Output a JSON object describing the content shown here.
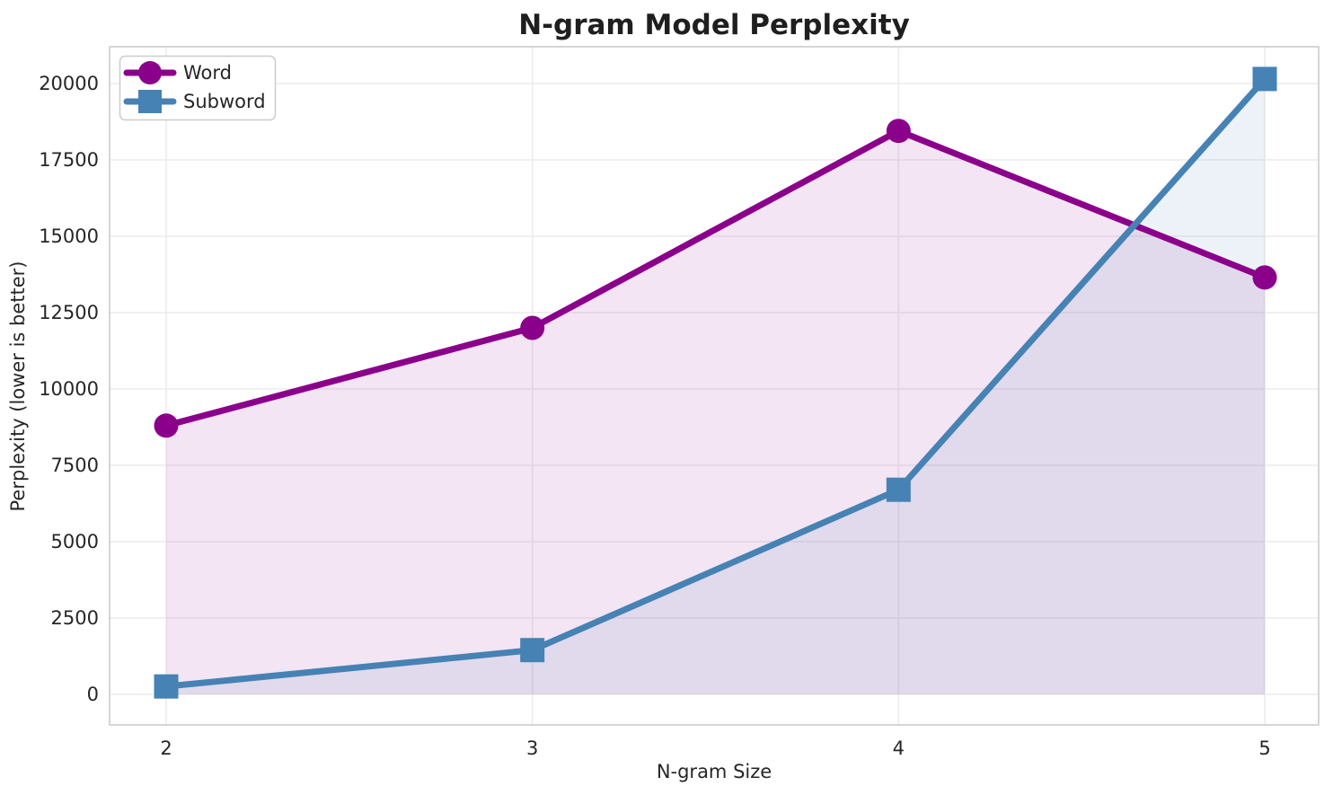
{
  "chart_data": {
    "type": "line",
    "title": "N-gram Model Perplexity",
    "xlabel": "N-gram Size",
    "ylabel": "Perplexity (lower is better)",
    "x": [
      2,
      3,
      4,
      5
    ],
    "xticks": [
      2,
      3,
      4,
      5
    ],
    "yticks": [
      0,
      2500,
      5000,
      7500,
      10000,
      12500,
      15000,
      17500,
      20000
    ],
    "xlim": [
      1.85,
      5.15
    ],
    "ylim": [
      -1000,
      21200
    ],
    "grid": true,
    "legend_position": "upper-left",
    "series": [
      {
        "name": "Word",
        "color": "#8B008B",
        "marker": "circle",
        "values": [
          8800,
          12000,
          18450,
          13650
        ],
        "fill_to_zero": true,
        "fill_opacity": 0.1
      },
      {
        "name": "Subword",
        "color": "#4682B4",
        "marker": "square",
        "values": [
          260,
          1450,
          6700,
          20150
        ],
        "fill_to_zero": true,
        "fill_opacity": 0.1
      }
    ]
  },
  "styles": {
    "background": "#FFFFFF",
    "grid_color": "#ECECEC",
    "spine_color": "#C9C9C9",
    "text_color": "#262626",
    "legend_border_color": "#CCCCCC",
    "legend_background": "#FFFFFF"
  }
}
